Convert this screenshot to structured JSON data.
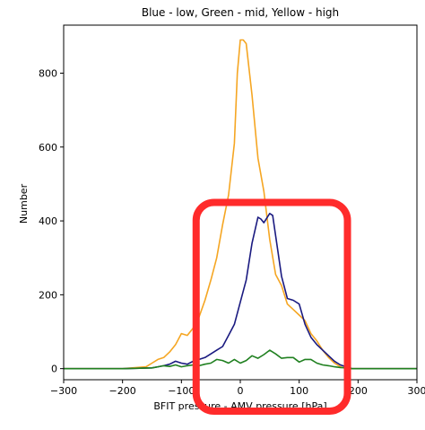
{
  "chart_data": {
    "type": "line",
    "title": "Blue - low, Green - mid, Yellow - high",
    "xlabel": "BFIT pressure - AMV pressure [hPa]",
    "ylabel": "Number",
    "xlim": [
      -300,
      300
    ],
    "ylim": [
      -30,
      930
    ],
    "xticks": [
      -300,
      -200,
      -100,
      0,
      100,
      200,
      300
    ],
    "xtick_labels": [
      "−300",
      "−200",
      "−100",
      "0",
      "100",
      "200",
      "300"
    ],
    "yticks": [
      0,
      200,
      400,
      600,
      800
    ],
    "ytick_labels": [
      "0",
      "200",
      "400",
      "600",
      "800"
    ],
    "grid": false,
    "legend": "none",
    "annotation": {
      "shape": "rounded-rectangle",
      "color": "#ff2b2b",
      "x_range": [
        -75,
        182
      ],
      "y_range": [
        -115,
        450
      ]
    },
    "series": [
      {
        "color": "#f5a623",
        "x": [
          -300,
          -200,
          -160,
          -150,
          -140,
          -130,
          -120,
          -110,
          -100,
          -90,
          -80,
          -70,
          -60,
          -50,
          -40,
          -30,
          -20,
          -10,
          -5,
          0,
          5,
          10,
          20,
          30,
          40,
          50,
          60,
          70,
          80,
          90,
          100,
          110,
          120,
          130,
          140,
          150,
          160,
          170,
          180,
          190,
          200,
          300
        ],
        "y": [
          0,
          0,
          5,
          15,
          25,
          30,
          45,
          65,
          95,
          90,
          110,
          140,
          185,
          240,
          300,
          390,
          470,
          610,
          800,
          890,
          890,
          880,
          740,
          570,
          480,
          350,
          255,
          225,
          175,
          160,
          145,
          130,
          95,
          75,
          50,
          30,
          15,
          5,
          0,
          0,
          0,
          0
        ]
      },
      {
        "color": "#1a1a80",
        "x": [
          -300,
          -200,
          -150,
          -140,
          -130,
          -120,
          -110,
          -100,
          -90,
          -80,
          -70,
          -60,
          -50,
          -40,
          -30,
          -20,
          -10,
          0,
          10,
          20,
          30,
          35,
          40,
          50,
          55,
          60,
          70,
          80,
          90,
          100,
          110,
          120,
          130,
          140,
          150,
          160,
          170,
          180,
          190,
          200,
          300
        ],
        "y": [
          0,
          0,
          2,
          5,
          8,
          12,
          20,
          15,
          12,
          20,
          25,
          30,
          40,
          50,
          60,
          90,
          120,
          180,
          240,
          340,
          410,
          405,
          395,
          420,
          415,
          360,
          250,
          190,
          185,
          175,
          120,
          85,
          65,
          50,
          35,
          20,
          10,
          5,
          0,
          0,
          0
        ]
      },
      {
        "color": "#208020",
        "x": [
          -300,
          -200,
          -150,
          -140,
          -130,
          -120,
          -110,
          -100,
          -90,
          -80,
          -70,
          -60,
          -50,
          -40,
          -30,
          -20,
          -10,
          0,
          10,
          20,
          30,
          40,
          50,
          60,
          70,
          80,
          90,
          100,
          110,
          120,
          130,
          140,
          150,
          160,
          170,
          180,
          190,
          200,
          300
        ],
        "y": [
          0,
          0,
          2,
          5,
          8,
          6,
          10,
          5,
          8,
          10,
          8,
          12,
          15,
          25,
          22,
          15,
          25,
          15,
          22,
          35,
          28,
          38,
          50,
          40,
          28,
          30,
          30,
          18,
          25,
          25,
          15,
          10,
          8,
          5,
          3,
          2,
          0,
          0,
          0
        ]
      }
    ]
  }
}
